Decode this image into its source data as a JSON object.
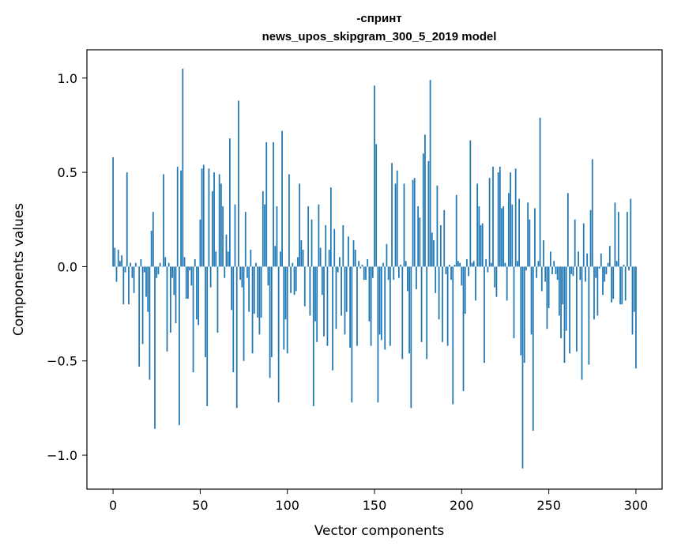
{
  "chart_data": {
    "type": "bar",
    "title_line1": "-спринт",
    "title_line2": "news_upos_skipgram_300_5_2019 model",
    "xlabel": "Vector components",
    "ylabel": "Components values",
    "xlim": [
      -15,
      315
    ],
    "ylim": [
      -1.18,
      1.15
    ],
    "xticks": [
      0,
      50,
      100,
      150,
      200,
      250,
      300
    ],
    "xtick_labels": [
      "0",
      "50",
      "100",
      "150",
      "200",
      "250",
      "300"
    ],
    "yticks": [
      1.0,
      0.5,
      0.0,
      -0.5,
      -1.0
    ],
    "ytick_labels": [
      "1.0",
      "0.5",
      "0.0",
      "−0.5",
      "−1.0"
    ],
    "bar_color": "#1f77b4",
    "grid": false,
    "legend": "none",
    "x_start": 0,
    "values": [
      0.58,
      0.1,
      -0.08,
      0.09,
      0.03,
      0.06,
      -0.2,
      -0.03,
      0.5,
      -0.2,
      0.02,
      -0.06,
      -0.14,
      0.02,
      0.0,
      -0.53,
      0.04,
      -0.41,
      -0.03,
      -0.16,
      -0.24,
      -0.6,
      0.19,
      0.29,
      -0.86,
      -0.06,
      -0.04,
      0.02,
      0.0,
      0.49,
      0.05,
      -0.45,
      0.02,
      -0.35,
      -0.06,
      -0.15,
      -0.3,
      0.53,
      -0.84,
      0.51,
      1.05,
      0.05,
      -0.17,
      -0.17,
      -0.02,
      -0.1,
      -0.56,
      0.04,
      -0.28,
      -0.31,
      0.25,
      0.52,
      0.54,
      -0.48,
      -0.74,
      0.52,
      -0.11,
      0.4,
      0.5,
      0.08,
      -0.35,
      0.49,
      0.44,
      0.32,
      -0.06,
      0.17,
      0.08,
      0.68,
      -0.23,
      -0.56,
      0.33,
      -0.75,
      0.88,
      -0.07,
      -0.11,
      -0.5,
      0.29,
      -0.06,
      -0.24,
      0.09,
      -0.46,
      -0.25,
      0.02,
      -0.27,
      -0.36,
      -0.27,
      0.4,
      0.33,
      0.66,
      -0.1,
      -0.59,
      -0.48,
      0.66,
      0.11,
      0.32,
      -0.72,
      0.08,
      0.72,
      -0.44,
      -0.28,
      -0.46,
      0.49,
      -0.14,
      0.02,
      -0.15,
      -0.13,
      0.05,
      0.44,
      0.14,
      0.09,
      -0.21,
      0.0,
      0.32,
      -0.26,
      0.25,
      -0.74,
      -0.29,
      -0.4,
      0.33,
      0.1,
      -0.15,
      -0.37,
      0.22,
      -0.42,
      0.09,
      0.42,
      -0.55,
      0.2,
      -0.33,
      -0.03,
      0.05,
      -0.26,
      0.22,
      -0.36,
      -0.24,
      0.16,
      -0.43,
      -0.72,
      0.14,
      0.09,
      -0.42,
      0.03,
      -0.01,
      0.01,
      -0.07,
      -0.07,
      0.04,
      -0.29,
      -0.42,
      -0.06,
      0.96,
      0.65,
      -0.72,
      -0.36,
      -0.39,
      0.02,
      -0.44,
      0.12,
      -0.07,
      -0.42,
      0.55,
      -0.07,
      0.44,
      0.51,
      -0.06,
      0.01,
      -0.49,
      0.44,
      0.03,
      -0.13,
      -0.46,
      -0.75,
      0.46,
      0.47,
      -0.12,
      0.32,
      0.26,
      -0.4,
      0.6,
      0.7,
      -0.49,
      0.56,
      0.99,
      0.18,
      0.14,
      -0.14,
      0.43,
      -0.28,
      0.22,
      -0.4,
      0.3,
      -0.04,
      -0.42,
      0.01,
      -0.07,
      -0.73,
      0.01,
      0.38,
      0.03,
      0.02,
      -0.1,
      -0.66,
      -0.25,
      0.04,
      -0.05,
      0.67,
      0.02,
      0.03,
      -0.18,
      0.44,
      0.32,
      0.22,
      0.23,
      -0.51,
      0.04,
      -0.03,
      0.47,
      0.02,
      0.53,
      -0.11,
      -0.16,
      0.5,
      0.53,
      0.31,
      0.32,
      0.02,
      -0.18,
      0.39,
      0.5,
      0.33,
      -0.38,
      0.52,
      0.03,
      0.36,
      -0.47,
      -1.07,
      -0.51,
      -0.02,
      0.34,
      0.25,
      -0.36,
      -0.87,
      0.31,
      -0.06,
      0.03,
      0.79,
      -0.13,
      0.14,
      -0.08,
      -0.33,
      -0.22,
      0.08,
      -0.04,
      0.03,
      -0.04,
      -0.07,
      -0.26,
      -0.38,
      -0.2,
      -0.51,
      -0.34,
      0.39,
      -0.46,
      -0.04,
      -0.05,
      0.25,
      -0.45,
      0.08,
      -0.07,
      -0.6,
      0.23,
      -0.08,
      0.07,
      -0.52,
      0.3,
      0.57,
      -0.28,
      -0.06,
      -0.26,
      -0.01,
      0.07,
      -0.15,
      -0.08,
      -0.04,
      0.02,
      0.11,
      -0.19,
      -0.17,
      0.34,
      0.03,
      0.29,
      -0.2,
      -0.2,
      0.01,
      -0.18,
      0.29,
      -0.02,
      0.36,
      -0.36,
      -0.24,
      -0.54
    ]
  }
}
